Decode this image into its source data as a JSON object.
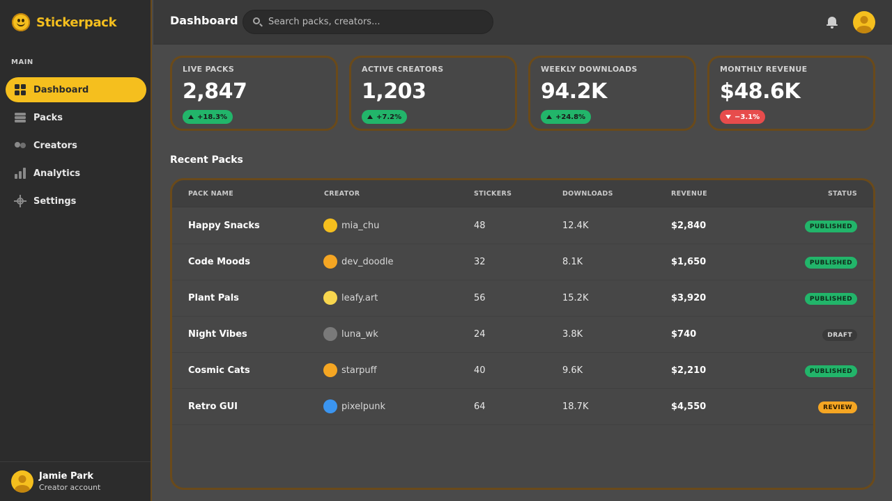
{
  "app": {
    "name": "Stickerpack"
  },
  "sidebar": {
    "section_label": "MAIN",
    "items": [
      {
        "label": "Dashboard",
        "icon": "grid-icon",
        "active": true
      },
      {
        "label": "Packs",
        "icon": "stack-icon",
        "active": false
      },
      {
        "label": "Creators",
        "icon": "users-icon",
        "active": false
      },
      {
        "label": "Analytics",
        "icon": "bar-chart-icon",
        "active": false
      },
      {
        "label": "Settings",
        "icon": "gear-icon",
        "active": false
      }
    ],
    "user": {
      "name": "Jamie Park",
      "role": "Creator account"
    }
  },
  "header": {
    "title": "Dashboard",
    "search_placeholder": "Search packs, creators..."
  },
  "stats": [
    {
      "label": "LIVE PACKS",
      "value": "2,847",
      "delta": "+18.3%",
      "trend": "up"
    },
    {
      "label": "ACTIVE CREATORS",
      "value": "1,203",
      "delta": "+7.2%",
      "trend": "up"
    },
    {
      "label": "WEEKLY DOWNLOADS",
      "value": "94.2K",
      "delta": "+24.8%",
      "trend": "up"
    },
    {
      "label": "MONTHLY REVENUE",
      "value": "$48.6K",
      "delta": "−3.1%",
      "trend": "down"
    }
  ],
  "recent": {
    "title": "Recent Packs",
    "columns": [
      "PACK NAME",
      "CREATOR",
      "STICKERS",
      "DOWNLOADS",
      "REVENUE",
      "STATUS"
    ],
    "rows": [
      {
        "name": "Happy Snacks",
        "creator": "mia_chu",
        "creator_color": "#f5bf1e",
        "stickers": "48",
        "downloads": "12.4K",
        "revenue": "$2,840",
        "status": "PUBLISHED"
      },
      {
        "name": "Code Moods",
        "creator": "dev_doodle",
        "creator_color": "#f5a623",
        "stickers": "32",
        "downloads": "8.1K",
        "revenue": "$1,650",
        "status": "PUBLISHED"
      },
      {
        "name": "Plant Pals",
        "creator": "leafy.art",
        "creator_color": "#f8d64e",
        "stickers": "56",
        "downloads": "15.2K",
        "revenue": "$3,920",
        "status": "PUBLISHED"
      },
      {
        "name": "Night Vibes",
        "creator": "luna_wk",
        "creator_color": "#7a7a7a",
        "stickers": "24",
        "downloads": "3.8K",
        "revenue": "$740",
        "status": "DRAFT"
      },
      {
        "name": "Cosmic Cats",
        "creator": "starpuff",
        "creator_color": "#f5a623",
        "stickers": "40",
        "downloads": "9.6K",
        "revenue": "$2,210",
        "status": "PUBLISHED"
      },
      {
        "name": "Retro GUI",
        "creator": "pixelpunk",
        "creator_color": "#3b95f0",
        "stickers": "64",
        "downloads": "18.7K",
        "revenue": "$4,550",
        "status": "REVIEW"
      }
    ]
  },
  "colors": {
    "accent": "#f5bf1e",
    "positive": "#22b56a",
    "negative": "#e74c4c",
    "draft": "#3a3a3a",
    "review": "#f5a623"
  }
}
